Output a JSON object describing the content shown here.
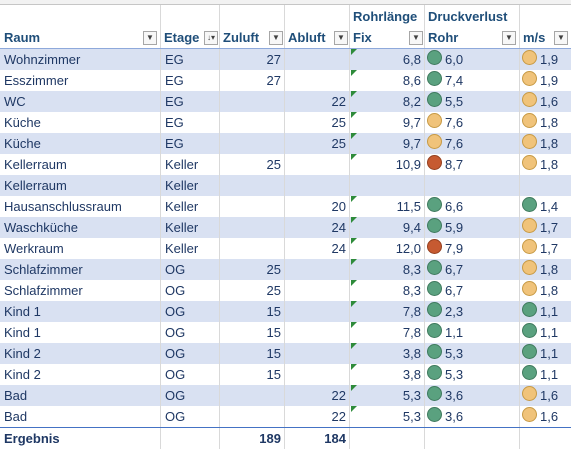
{
  "header": {
    "raum": "Raum",
    "etage": "Etage",
    "zuluft": "Zuluft",
    "abluft": "Abluft",
    "rohrlaenge_line1": "Rohrlänge",
    "rohrlaenge_line2": "Fix",
    "druckverlust_line1": "Druckverlust",
    "druckverlust_line2": "Rohr",
    "ms": "m/s"
  },
  "rows": [
    {
      "raum": "Wohnzimmer",
      "etage": "EG",
      "zuluft": "27",
      "abluft": "",
      "rohr": "6,8",
      "druck": "6,0",
      "druck_icon": "green",
      "ms": "1,9",
      "ms_icon": "yellow"
    },
    {
      "raum": "Esszimmer",
      "etage": "EG",
      "zuluft": "27",
      "abluft": "",
      "rohr": "8,6",
      "druck": "7,4",
      "druck_icon": "green",
      "ms": "1,9",
      "ms_icon": "yellow"
    },
    {
      "raum": "WC",
      "etage": "EG",
      "zuluft": "",
      "abluft": "22",
      "rohr": "8,2",
      "druck": "5,5",
      "druck_icon": "green",
      "ms": "1,6",
      "ms_icon": "yellow"
    },
    {
      "raum": "Küche",
      "etage": "EG",
      "zuluft": "",
      "abluft": "25",
      "rohr": "9,7",
      "druck": "7,6",
      "druck_icon": "yellow",
      "ms": "1,8",
      "ms_icon": "yellow"
    },
    {
      "raum": "Küche",
      "etage": "EG",
      "zuluft": "",
      "abluft": "25",
      "rohr": "9,7",
      "druck": "7,6",
      "druck_icon": "yellow",
      "ms": "1,8",
      "ms_icon": "yellow"
    },
    {
      "raum": "Kellerraum",
      "etage": "Keller",
      "zuluft": "25",
      "abluft": "",
      "rohr": "10,9",
      "druck": "8,7",
      "druck_icon": "red",
      "ms": "1,8",
      "ms_icon": "yellow"
    },
    {
      "raum": "Kellerraum",
      "etage": "Keller",
      "zuluft": "",
      "abluft": "",
      "rohr": "",
      "druck": "",
      "druck_icon": "",
      "ms": "",
      "ms_icon": ""
    },
    {
      "raum": "Hausanschlussraum",
      "etage": "Keller",
      "zuluft": "",
      "abluft": "20",
      "rohr": "11,5",
      "druck": "6,6",
      "druck_icon": "green",
      "ms": "1,4",
      "ms_icon": "green"
    },
    {
      "raum": "Waschküche",
      "etage": "Keller",
      "zuluft": "",
      "abluft": "24",
      "rohr": "9,4",
      "druck": "5,9",
      "druck_icon": "green",
      "ms": "1,7",
      "ms_icon": "yellow"
    },
    {
      "raum": "Werkraum",
      "etage": "Keller",
      "zuluft": "",
      "abluft": "24",
      "rohr": "12,0",
      "druck": "7,9",
      "druck_icon": "red",
      "ms": "1,7",
      "ms_icon": "yellow"
    },
    {
      "raum": "Schlafzimmer",
      "etage": "OG",
      "zuluft": "25",
      "abluft": "",
      "rohr": "8,3",
      "druck": "6,7",
      "druck_icon": "green",
      "ms": "1,8",
      "ms_icon": "yellow"
    },
    {
      "raum": "Schlafzimmer",
      "etage": "OG",
      "zuluft": "25",
      "abluft": "",
      "rohr": "8,3",
      "druck": "6,7",
      "druck_icon": "green",
      "ms": "1,8",
      "ms_icon": "yellow"
    },
    {
      "raum": "Kind 1",
      "etage": "OG",
      "zuluft": "15",
      "abluft": "",
      "rohr": "7,8",
      "druck": "2,3",
      "druck_icon": "green",
      "ms": "1,1",
      "ms_icon": "green"
    },
    {
      "raum": "Kind 1",
      "etage": "OG",
      "zuluft": "15",
      "abluft": "",
      "rohr": "7,8",
      "druck": "1,1",
      "druck_icon": "green",
      "ms": "1,1",
      "ms_icon": "green"
    },
    {
      "raum": "Kind 2",
      "etage": "OG",
      "zuluft": "15",
      "abluft": "",
      "rohr": "3,8",
      "druck": "5,3",
      "druck_icon": "green",
      "ms": "1,1",
      "ms_icon": "green"
    },
    {
      "raum": "Kind 2",
      "etage": "OG",
      "zuluft": "15",
      "abluft": "",
      "rohr": "3,8",
      "druck": "5,3",
      "druck_icon": "green",
      "ms": "1,1",
      "ms_icon": "green"
    },
    {
      "raum": "Bad",
      "etage": "OG",
      "zuluft": "",
      "abluft": "22",
      "rohr": "5,3",
      "druck": "3,6",
      "druck_icon": "green",
      "ms": "1,6",
      "ms_icon": "yellow"
    },
    {
      "raum": "Bad",
      "etage": "OG",
      "zuluft": "",
      "abluft": "22",
      "rohr": "5,3",
      "druck": "3,6",
      "druck_icon": "green",
      "ms": "1,6",
      "ms_icon": "yellow"
    }
  ],
  "totals": {
    "label": "Ergebnis",
    "zuluft": "189",
    "abluft": "184"
  },
  "colors": {
    "band": "#d9e1f2",
    "header_text": "#1f4e79",
    "icon_green": "#5aa17f",
    "icon_yellow": "#f0c37a",
    "icon_red": "#c65a31"
  }
}
